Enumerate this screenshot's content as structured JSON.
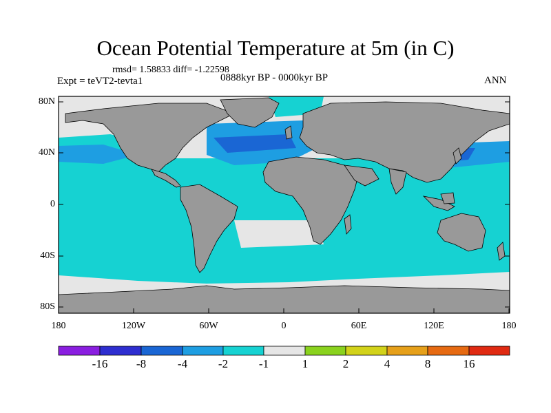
{
  "header": {
    "title": "Ocean Potential Temperature at 5m (in C)",
    "rmsd_text": "rmsd= 1.58833 diff= -1.22598",
    "experiment": "Expt = teVT2-tevta1",
    "period": "0888kyr BP - 0000kyr BP",
    "season": "ANN"
  },
  "axes": {
    "y_ticks": [
      "80N",
      "40N",
      "0",
      "40S",
      "80S"
    ],
    "x_ticks": [
      "180",
      "120W",
      "60W",
      "0",
      "60E",
      "120E",
      "180"
    ]
  },
  "colorbar": {
    "labels": [
      "-16",
      "-8",
      "-4",
      "-2",
      "-1",
      "1",
      "2",
      "4",
      "8",
      "16"
    ],
    "colors": [
      "#8a1ee0",
      "#2e2ed0",
      "#1a66d4",
      "#1e9ee2",
      "#16d2d2",
      "#e6e6e6",
      "#8ad21e",
      "#d2d21a",
      "#e6a01a",
      "#e66a12",
      "#e02a12"
    ]
  },
  "colors": {
    "land": "#999999",
    "ocean_light": "#e6e6e6",
    "cyan": "#16d2d2",
    "blue": "#1e9ee2",
    "dark_blue": "#1a66d4"
  }
}
